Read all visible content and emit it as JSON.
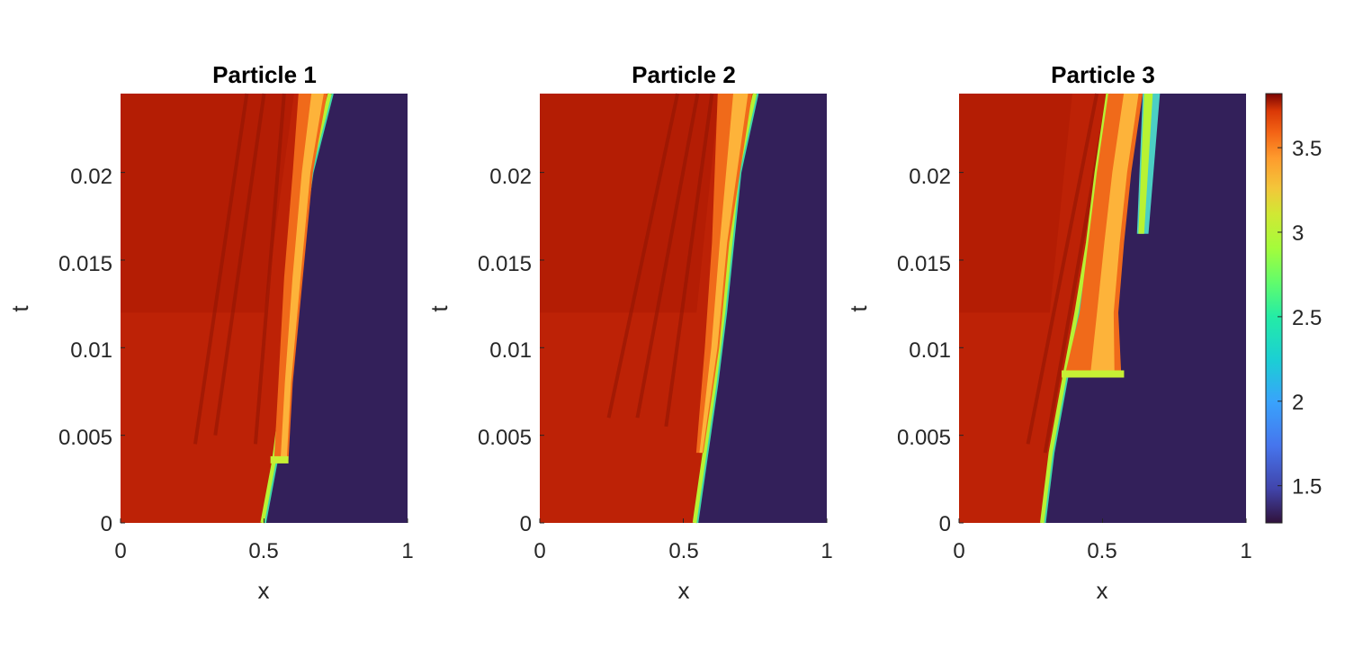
{
  "chart_data": [
    {
      "type": "heatmap",
      "title": "Particle 1",
      "xlabel": "x",
      "ylabel": "t",
      "xlim": [
        0,
        1
      ],
      "ylim": [
        0,
        0.0245
      ],
      "xticks": [
        "0",
        "0.5",
        "1"
      ],
      "yticks": [
        "0",
        "0.005",
        "0.01",
        "0.015",
        "0.02"
      ],
      "background_left": 3.72,
      "background_right": 1.33,
      "front": [
        [
          0,
          0.495
        ],
        [
          0.0035,
          0.535
        ],
        [
          0.008,
          0.57
        ],
        [
          0.012,
          0.595
        ],
        [
          0.016,
          0.625
        ],
        [
          0.02,
          0.66
        ],
        [
          0.0245,
          0.73
        ]
      ],
      "step": {
        "t": 0.0036,
        "x": 0.585
      },
      "hot_band": [
        [
          0.0036,
          0.535,
          0.585
        ],
        [
          0.008,
          0.55,
          0.6
        ],
        [
          0.014,
          0.57,
          0.635
        ],
        [
          0.02,
          0.6,
          0.67
        ],
        [
          0.0245,
          0.62,
          0.72
        ]
      ],
      "streaks": [
        [
          0.0045,
          0.26,
          0.0245,
          0.44
        ],
        [
          0.005,
          0.33,
          0.0245,
          0.5
        ],
        [
          0.0045,
          0.47,
          0.0245,
          0.57
        ]
      ]
    },
    {
      "type": "heatmap",
      "title": "Particle 2",
      "xlabel": "x",
      "ylabel": "t",
      "xlim": [
        0,
        1
      ],
      "ylim": [
        0,
        0.0245
      ],
      "xticks": [
        "0",
        "0.5",
        "1"
      ],
      "yticks": [
        "0",
        "0.005",
        "0.01",
        "0.015",
        "0.02"
      ],
      "background_left": 3.72,
      "background_right": 1.33,
      "front": [
        [
          0,
          0.54
        ],
        [
          0.004,
          0.575
        ],
        [
          0.008,
          0.61
        ],
        [
          0.012,
          0.64
        ],
        [
          0.016,
          0.665
        ],
        [
          0.02,
          0.69
        ],
        [
          0.0245,
          0.75
        ]
      ],
      "step": null,
      "hot_band": [
        [
          0.004,
          0.545,
          0.57
        ],
        [
          0.01,
          0.575,
          0.625
        ],
        [
          0.016,
          0.6,
          0.66
        ],
        [
          0.0245,
          0.62,
          0.74
        ]
      ],
      "streaks": [
        [
          0.006,
          0.24,
          0.0245,
          0.48
        ],
        [
          0.006,
          0.34,
          0.0245,
          0.55
        ],
        [
          0.0055,
          0.44,
          0.0245,
          0.6
        ]
      ]
    },
    {
      "type": "heatmap",
      "title": "Particle 3",
      "xlabel": "x",
      "ylabel": "t",
      "xlim": [
        0,
        1
      ],
      "ylim": [
        0,
        0.0245
      ],
      "xticks": [
        "0",
        "0.5",
        "1"
      ],
      "yticks": [
        "0",
        "0.005",
        "0.01",
        "0.015",
        "0.02"
      ],
      "background_left": 3.72,
      "background_right": 1.33,
      "front": [
        [
          0,
          0.29
        ],
        [
          0.004,
          0.32
        ],
        [
          0.0085,
          0.37
        ],
        [
          0.012,
          0.41
        ],
        [
          0.016,
          0.45
        ],
        [
          0.02,
          0.48
        ],
        [
          0.0245,
          0.52
        ]
      ],
      "step": {
        "t": 0.0085,
        "x": 0.575
      },
      "hot_band": [
        [
          0.0085,
          0.37,
          0.565
        ],
        [
          0.012,
          0.42,
          0.555
        ],
        [
          0.016,
          0.45,
          0.575
        ],
        [
          0.02,
          0.48,
          0.6
        ],
        [
          0.0245,
          0.52,
          0.64
        ]
      ],
      "extra_front": {
        "t0": 0.0165,
        "x0": 0.62,
        "x1": 0.66
      },
      "streaks": [
        [
          0.0045,
          0.24,
          0.0245,
          0.48
        ],
        [
          0.004,
          0.3,
          0.0245,
          0.52
        ]
      ]
    }
  ],
  "colorbar": {
    "min": 1.28,
    "max": 3.82,
    "ticks": [
      "1.5",
      "2",
      "2.5",
      "3",
      "3.5"
    ],
    "tick_values": [
      1.5,
      2,
      2.5,
      3,
      3.5
    ]
  }
}
